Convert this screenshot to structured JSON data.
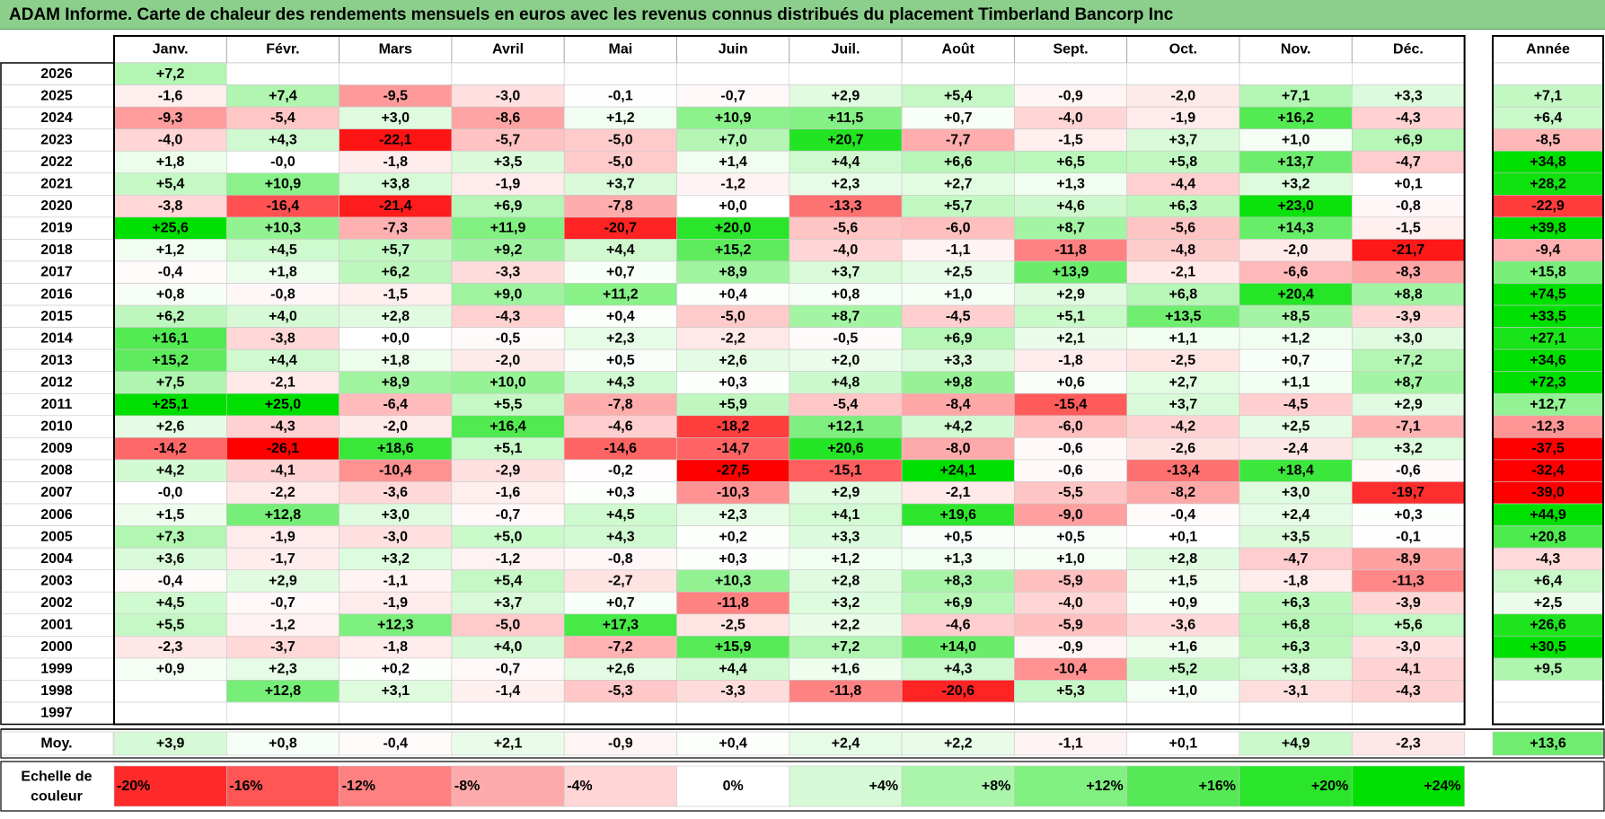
{
  "title": "ADAM Informe. Carte de chaleur des rendements mensuels en euros avec les revenus connus distribués du placement Timberland Bancorp Inc",
  "chart_data": {
    "type": "heatmap",
    "months": [
      "Janv.",
      "Févr.",
      "Mars",
      "Avril",
      "Mai",
      "Juin",
      "Juil.",
      "Août",
      "Sept.",
      "Oct.",
      "Nov.",
      "Déc."
    ],
    "annual_header": "Année",
    "rows": [
      {
        "year": "2026",
        "m": [
          "+7,2",
          null,
          null,
          null,
          null,
          null,
          null,
          null,
          null,
          null,
          null,
          null
        ],
        "annual": null
      },
      {
        "year": "2025",
        "m": [
          "-1,6",
          "+7,4",
          "-9,5",
          "-3,0",
          "-0,1",
          "-0,7",
          "+2,9",
          "+5,4",
          "-0,9",
          "-2,0",
          "+7,1",
          "+3,3"
        ],
        "annual": "+7,1"
      },
      {
        "year": "2024",
        "m": [
          "-9,3",
          "-5,4",
          "+3,0",
          "-8,6",
          "+1,2",
          "+10,9",
          "+11,5",
          "+0,7",
          "-4,0",
          "-1,9",
          "+16,2",
          "-4,3"
        ],
        "annual": "+6,4"
      },
      {
        "year": "2023",
        "m": [
          "-4,0",
          "+4,3",
          "-22,1",
          "-5,7",
          "-5,0",
          "+7,0",
          "+20,7",
          "-7,7",
          "-1,5",
          "+3,7",
          "+1,0",
          "+6,9"
        ],
        "annual": "-8,5"
      },
      {
        "year": "2022",
        "m": [
          "+1,8",
          "-0,0",
          "-1,8",
          "+3,5",
          "-5,0",
          "+1,4",
          "+4,4",
          "+6,6",
          "+6,5",
          "+5,8",
          "+13,7",
          "-4,7"
        ],
        "annual": "+34,8"
      },
      {
        "year": "2021",
        "m": [
          "+5,4",
          "+10,9",
          "+3,8",
          "-1,9",
          "+3,7",
          "-1,2",
          "+2,3",
          "+2,7",
          "+1,3",
          "-4,4",
          "+3,2",
          "+0,1"
        ],
        "annual": "+28,2"
      },
      {
        "year": "2020",
        "m": [
          "-3,8",
          "-16,4",
          "-21,4",
          "+6,9",
          "-7,8",
          "+0,0",
          "-13,3",
          "+5,7",
          "+4,6",
          "+6,3",
          "+23,0",
          "-0,8"
        ],
        "annual": "-22,9"
      },
      {
        "year": "2019",
        "m": [
          "+25,6",
          "+10,3",
          "-7,3",
          "+11,9",
          "-20,7",
          "+20,0",
          "-5,6",
          "-6,0",
          "+8,7",
          "-5,6",
          "+14,3",
          "-1,5"
        ],
        "annual": "+39,8"
      },
      {
        "year": "2018",
        "m": [
          "+1,2",
          "+4,5",
          "+5,7",
          "+9,2",
          "+4,4",
          "+15,2",
          "-4,0",
          "-1,1",
          "-11,8",
          "-4,8",
          "-2,0",
          "-21,7"
        ],
        "annual": "-9,4"
      },
      {
        "year": "2017",
        "m": [
          "-0,4",
          "+1,8",
          "+6,2",
          "-3,3",
          "+0,7",
          "+8,9",
          "+3,7",
          "+2,5",
          "+13,9",
          "-2,1",
          "-6,6",
          "-8,3"
        ],
        "annual": "+15,8"
      },
      {
        "year": "2016",
        "m": [
          "+0,8",
          "-0,8",
          "-1,5",
          "+9,0",
          "+11,2",
          "+0,4",
          "+0,8",
          "+1,0",
          "+2,9",
          "+6,8",
          "+20,4",
          "+8,8"
        ],
        "annual": "+74,5"
      },
      {
        "year": "2015",
        "m": [
          "+6,2",
          "+4,0",
          "+2,8",
          "-4,3",
          "+0,4",
          "-5,0",
          "+8,7",
          "-4,5",
          "+5,1",
          "+13,5",
          "+8,5",
          "-3,9"
        ],
        "annual": "+33,5"
      },
      {
        "year": "2014",
        "m": [
          "+16,1",
          "-3,8",
          "+0,0",
          "-0,5",
          "+2,3",
          "-2,2",
          "-0,5",
          "+6,9",
          "+2,1",
          "+1,1",
          "+1,2",
          "+3,0"
        ],
        "annual": "+27,1"
      },
      {
        "year": "2013",
        "m": [
          "+15,2",
          "+4,4",
          "+1,8",
          "-2,0",
          "+0,5",
          "+2,6",
          "+2,0",
          "+3,3",
          "-1,8",
          "-2,5",
          "+0,7",
          "+7,2"
        ],
        "annual": "+34,6"
      },
      {
        "year": "2012",
        "m": [
          "+7,5",
          "-2,1",
          "+8,9",
          "+10,0",
          "+4,3",
          "+0,3",
          "+4,8",
          "+9,8",
          "+0,6",
          "+2,7",
          "+1,1",
          "+8,7"
        ],
        "annual": "+72,3"
      },
      {
        "year": "2011",
        "m": [
          "+25,1",
          "+25,0",
          "-6,4",
          "+5,5",
          "-7,8",
          "+5,9",
          "-5,4",
          "-8,4",
          "-15,4",
          "+3,7",
          "-4,5",
          "+2,9"
        ],
        "annual": "+12,7"
      },
      {
        "year": "2010",
        "m": [
          "+2,6",
          "-4,3",
          "-2,0",
          "+16,4",
          "-4,6",
          "-18,2",
          "+12,1",
          "+4,2",
          "-6,0",
          "-4,2",
          "+2,5",
          "-7,1"
        ],
        "annual": "-12,3"
      },
      {
        "year": "2009",
        "m": [
          "-14,2",
          "-26,1",
          "+18,6",
          "+5,1",
          "-14,6",
          "-14,7",
          "+20,6",
          "-8,0",
          "-0,6",
          "-2,6",
          "-2,4",
          "+3,2"
        ],
        "annual": "-37,5"
      },
      {
        "year": "2008",
        "m": [
          "+4,2",
          "-4,1",
          "-10,4",
          "-2,9",
          "-0,2",
          "-27,5",
          "-15,1",
          "+24,1",
          "-0,6",
          "-13,4",
          "+18,4",
          "-0,6"
        ],
        "annual": "-32,4"
      },
      {
        "year": "2007",
        "m": [
          "-0,0",
          "-2,2",
          "-3,6",
          "-1,6",
          "+0,3",
          "-10,3",
          "+2,9",
          "-2,1",
          "-5,5",
          "-8,2",
          "+3,0",
          "-19,7"
        ],
        "annual": "-39,0"
      },
      {
        "year": "2006",
        "m": [
          "+1,5",
          "+12,8",
          "+3,0",
          "-0,7",
          "+4,5",
          "+2,3",
          "+4,1",
          "+19,6",
          "-9,0",
          "-0,4",
          "+2,4",
          "+0,3"
        ],
        "annual": "+44,9"
      },
      {
        "year": "2005",
        "m": [
          "+7,3",
          "-1,9",
          "-3,0",
          "+5,0",
          "+4,3",
          "+0,2",
          "+3,3",
          "+0,5",
          "+0,5",
          "+0,1",
          "+3,5",
          "-0,1"
        ],
        "annual": "+20,8"
      },
      {
        "year": "2004",
        "m": [
          "+3,6",
          "-1,7",
          "+3,2",
          "-1,2",
          "-0,8",
          "+0,3",
          "+1,2",
          "+1,3",
          "+1,0",
          "+2,8",
          "-4,7",
          "-8,9"
        ],
        "annual": "-4,3"
      },
      {
        "year": "2003",
        "m": [
          "-0,4",
          "+2,9",
          "-1,1",
          "+5,4",
          "-2,7",
          "+10,3",
          "+2,8",
          "+8,3",
          "-5,9",
          "+1,5",
          "-1,8",
          "-11,3"
        ],
        "annual": "+6,4"
      },
      {
        "year": "2002",
        "m": [
          "+4,5",
          "-0,7",
          "-1,9",
          "+3,7",
          "+0,7",
          "-11,8",
          "+3,2",
          "+6,9",
          "-4,0",
          "+0,9",
          "+6,3",
          "-3,9"
        ],
        "annual": "+2,5"
      },
      {
        "year": "2001",
        "m": [
          "+5,5",
          "-1,2",
          "+12,3",
          "-5,0",
          "+17,3",
          "-2,5",
          "+2,2",
          "-4,6",
          "-5,9",
          "-3,6",
          "+6,8",
          "+5,6"
        ],
        "annual": "+26,6"
      },
      {
        "year": "2000",
        "m": [
          "-2,3",
          "-3,7",
          "-1,8",
          "+4,0",
          "-7,2",
          "+15,9",
          "+7,2",
          "+14,0",
          "-0,9",
          "+1,6",
          "+6,3",
          "-3,0"
        ],
        "annual": "+30,5"
      },
      {
        "year": "1999",
        "m": [
          "+0,9",
          "+2,3",
          "+0,2",
          "-0,7",
          "+2,6",
          "+4,4",
          "+1,6",
          "+4,3",
          "-10,4",
          "+5,2",
          "+3,8",
          "-4,1"
        ],
        "annual": "+9,5"
      },
      {
        "year": "1998",
        "m": [
          null,
          "+12,8",
          "+3,1",
          "-1,4",
          "-5,3",
          "-3,3",
          "-11,8",
          "-20,6",
          "+5,3",
          "+1,0",
          "-3,1",
          "-4,3"
        ],
        "annual": null
      },
      {
        "year": "1997",
        "m": [
          null,
          null,
          null,
          null,
          null,
          null,
          null,
          null,
          null,
          null,
          null,
          null
        ],
        "annual": null
      }
    ],
    "average": {
      "label": "Moy.",
      "m": [
        "+3,9",
        "+0,8",
        "-0,4",
        "+2,1",
        "-0,9",
        "+0,4",
        "+2,4",
        "+2,2",
        "-1,1",
        "+0,1",
        "+4,9",
        "-2,3"
      ],
      "annual": "+13,6"
    },
    "scale": {
      "label_line1": "Echelle de",
      "label_line2": "couleur",
      "steps": [
        "-20%",
        "-16%",
        "-12%",
        "-8%",
        "-4%",
        "0%",
        "+4%",
        "+8%",
        "+12%",
        "+16%",
        "+20%",
        "+24%"
      ],
      "values": [
        -20,
        -16,
        -12,
        -8,
        -4,
        0,
        4,
        8,
        12,
        16,
        20,
        24
      ]
    }
  },
  "colors": {
    "positive_max": "#00e000",
    "negative_max": "#ff0000",
    "title_bg": "#8ccf8c"
  }
}
